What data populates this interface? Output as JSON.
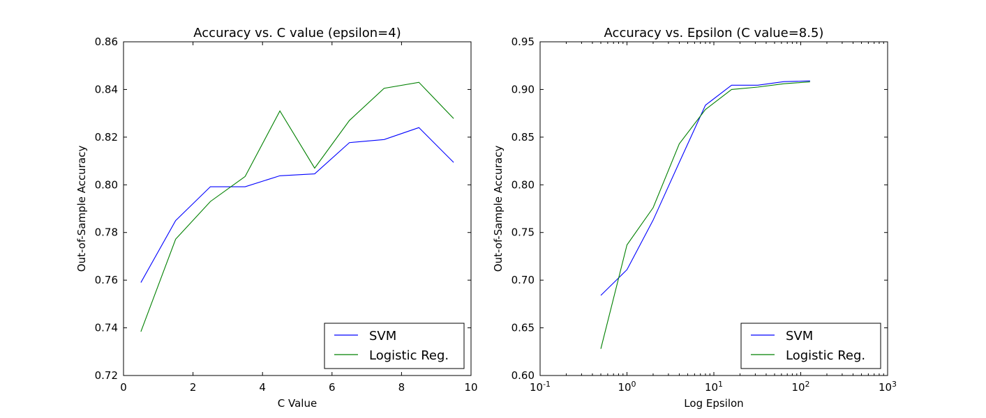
{
  "chart_data": [
    {
      "type": "line",
      "title": "Accuracy vs. C value (epsilon=4)",
      "xlabel": "C Value",
      "ylabel": "Out-of-Sample Accuracy",
      "xscale": "linear",
      "xlim": [
        0,
        10
      ],
      "ylim": [
        0.72,
        0.86
      ],
      "xticks": [
        0,
        2,
        4,
        6,
        8,
        10
      ],
      "xtick_labels": [
        "0",
        "2",
        "4",
        "6",
        "8",
        "10"
      ],
      "yticks": [
        0.72,
        0.74,
        0.76,
        0.78,
        0.8,
        0.82,
        0.84,
        0.86
      ],
      "ytick_labels": [
        "0.72",
        "0.74",
        "0.76",
        "0.78",
        "0.80",
        "0.82",
        "0.84",
        "0.86"
      ],
      "grid": false,
      "legend_position": "lower-right",
      "x": [
        0.5,
        1.5,
        2.5,
        3.5,
        4.5,
        5.5,
        6.5,
        7.5,
        8.5,
        9.5
      ],
      "series": [
        {
          "name": "SVM",
          "color": "#0000ff",
          "values": [
            0.759,
            0.785,
            0.7992,
            0.7992,
            0.8038,
            0.8046,
            0.8177,
            0.819,
            0.824,
            0.8094
          ]
        },
        {
          "name": "Logistic Reg.",
          "color": "#008000",
          "values": [
            0.7384,
            0.7772,
            0.793,
            0.8035,
            0.831,
            0.807,
            0.827,
            0.8405,
            0.843,
            0.8278
          ]
        }
      ]
    },
    {
      "type": "line",
      "title": "Accuracy vs. Epsilon (C value=8.5)",
      "xlabel": "Log Epsilon",
      "ylabel": "Out-of-Sample Accuracy",
      "xscale": "log",
      "xlim": [
        0.1,
        1000
      ],
      "ylim": [
        0.6,
        0.95
      ],
      "xticks": [
        0.1,
        1,
        10,
        100,
        1000
      ],
      "xtick_base": "10",
      "xtick_exponents": [
        "-1",
        "0",
        "1",
        "2",
        "3"
      ],
      "yticks": [
        0.6,
        0.65,
        0.7,
        0.75,
        0.8,
        0.85,
        0.9,
        0.95
      ],
      "ytick_labels": [
        "0.60",
        "0.65",
        "0.70",
        "0.75",
        "0.80",
        "0.85",
        "0.90",
        "0.95"
      ],
      "grid": false,
      "legend_position": "lower-right",
      "x": [
        0.5,
        1,
        2,
        4,
        8,
        16,
        32,
        64,
        128
      ],
      "series": [
        {
          "name": "SVM",
          "color": "#0000ff",
          "values": [
            0.684,
            0.711,
            0.763,
            0.8235,
            0.8835,
            0.9045,
            0.9045,
            0.9082,
            0.909
          ]
        },
        {
          "name": "Logistic Reg.",
          "color": "#008000",
          "values": [
            0.628,
            0.737,
            0.776,
            0.843,
            0.879,
            0.9,
            0.9025,
            0.906,
            0.908
          ]
        }
      ]
    }
  ]
}
